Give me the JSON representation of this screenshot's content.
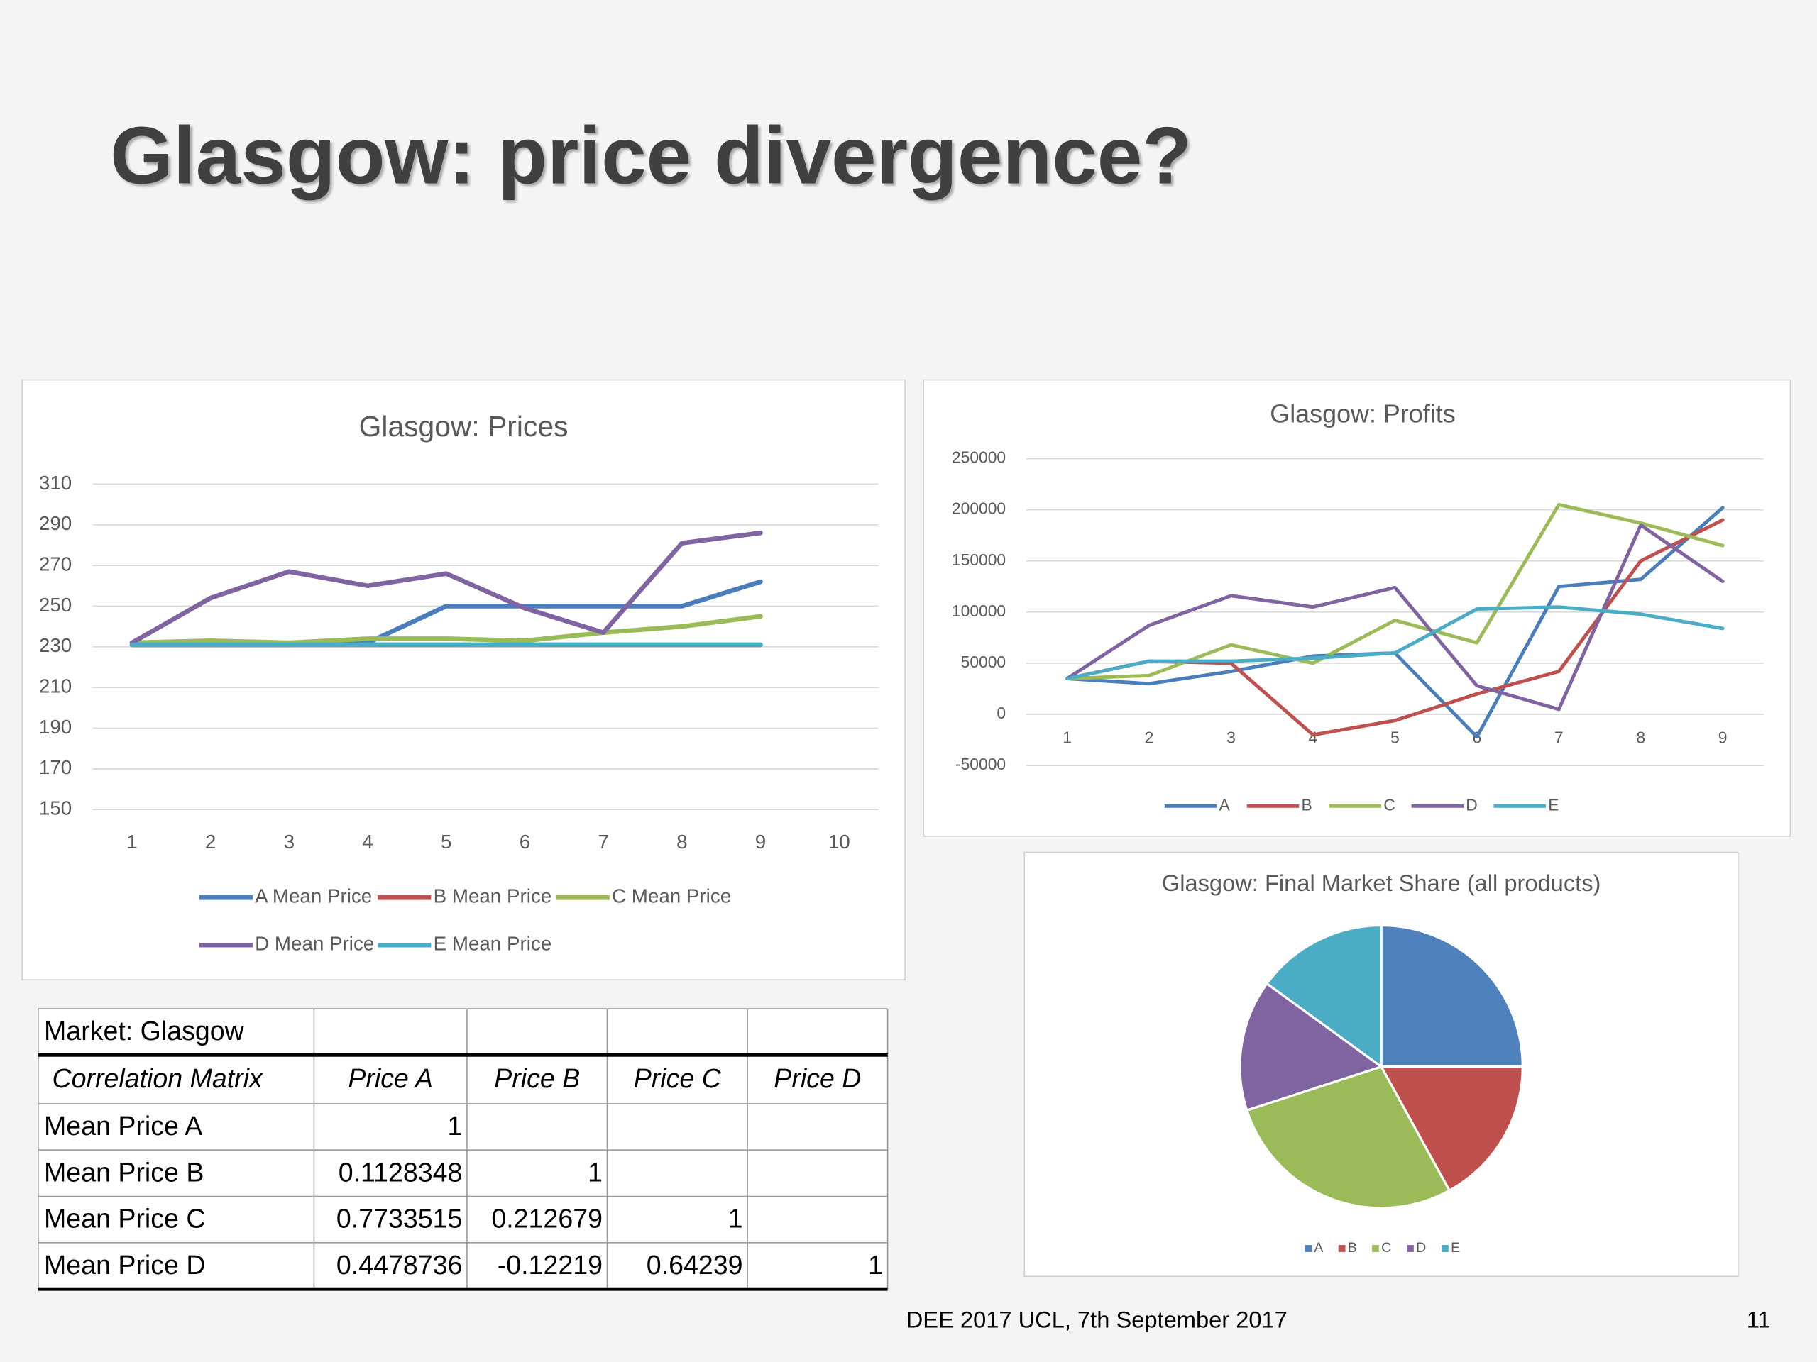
{
  "title": "Glasgow: price divergence?",
  "footer": "DEE 2017 UCL, 7th September 2017",
  "page_number": "11",
  "chart_data": [
    {
      "type": "line",
      "title": "Glasgow: Prices",
      "categories": [
        "1",
        "2",
        "3",
        "4",
        "5",
        "6",
        "7",
        "8",
        "9",
        "10"
      ],
      "ylim": [
        150,
        310
      ],
      "yticks": [
        150,
        170,
        190,
        210,
        230,
        250,
        270,
        290,
        310
      ],
      "grid": true,
      "legend": "bottom",
      "series": [
        {
          "name": "A Mean Price",
          "color": "#4a7ebb",
          "values": [
            231,
            231,
            231,
            232,
            250,
            250,
            250,
            250,
            262,
            null
          ]
        },
        {
          "name": "B Mean Price",
          "color": "#c0504d",
          "values": [
            231,
            231,
            231,
            231,
            231,
            231,
            231,
            231,
            231,
            null
          ]
        },
        {
          "name": "C Mean Price",
          "color": "#9bbb59",
          "values": [
            232,
            233,
            232,
            234,
            234,
            233,
            237,
            240,
            245,
            null
          ]
        },
        {
          "name": "D Mean Price",
          "color": "#8064a2",
          "values": [
            232,
            254,
            267,
            260,
            266,
            249,
            237,
            281,
            286,
            null
          ]
        },
        {
          "name": "E Mean Price",
          "color": "#4bacc6",
          "values": [
            231,
            231,
            231,
            231,
            231,
            231,
            231,
            231,
            231,
            null
          ]
        }
      ]
    },
    {
      "type": "line",
      "title": "Glasgow: Profits",
      "categories": [
        "1",
        "2",
        "3",
        "4",
        "5",
        "6",
        "7",
        "8",
        "9"
      ],
      "ylim": [
        -50000,
        250000
      ],
      "yticks": [
        -50000,
        0,
        50000,
        100000,
        150000,
        200000,
        250000
      ],
      "grid": true,
      "legend": "bottom",
      "series": [
        {
          "name": "A",
          "color": "#4a7ebb",
          "values": [
            35000,
            30000,
            42000,
            57000,
            60000,
            -22000,
            125000,
            132000,
            202000
          ]
        },
        {
          "name": "B",
          "color": "#c0504d",
          "values": [
            35000,
            52000,
            50000,
            -20000,
            -6000,
            20000,
            42000,
            150000,
            190000
          ]
        },
        {
          "name": "C",
          "color": "#9bbb59",
          "values": [
            35000,
            38000,
            68000,
            50000,
            92000,
            70000,
            205000,
            187000,
            165000
          ]
        },
        {
          "name": "D",
          "color": "#8064a2",
          "values": [
            35000,
            87000,
            116000,
            105000,
            124000,
            28000,
            5000,
            185000,
            130000
          ]
        },
        {
          "name": "E",
          "color": "#4bacc6",
          "values": [
            35000,
            52000,
            52000,
            55000,
            60000,
            103000,
            105000,
            98000,
            84000
          ]
        }
      ]
    },
    {
      "type": "pie",
      "title": "Glasgow: Final Market Share (all products)",
      "categories": [
        "A",
        "B",
        "C",
        "D",
        "E"
      ],
      "values": [
        25,
        17,
        28,
        15,
        15
      ],
      "colors": [
        "#4f81bd",
        "#c0504d",
        "#9bbb59",
        "#8064a2",
        "#4bacc6"
      ],
      "legend": "bottom"
    }
  ],
  "table": {
    "rows": [
      [
        "Market: Glasgow"
      ],
      [
        "Correlation Matrix",
        "Price A",
        "Price B",
        "Price C",
        "Price D"
      ],
      [
        "Mean Price A",
        "1"
      ],
      [
        "Mean Price B",
        "0.1128348",
        "1"
      ],
      [
        "Mean Price C",
        "0.7733515",
        "0.212679",
        "1"
      ],
      [
        "Mean Price D",
        "0.4478736",
        "-0.12219",
        "0.64239",
        "1"
      ]
    ]
  }
}
